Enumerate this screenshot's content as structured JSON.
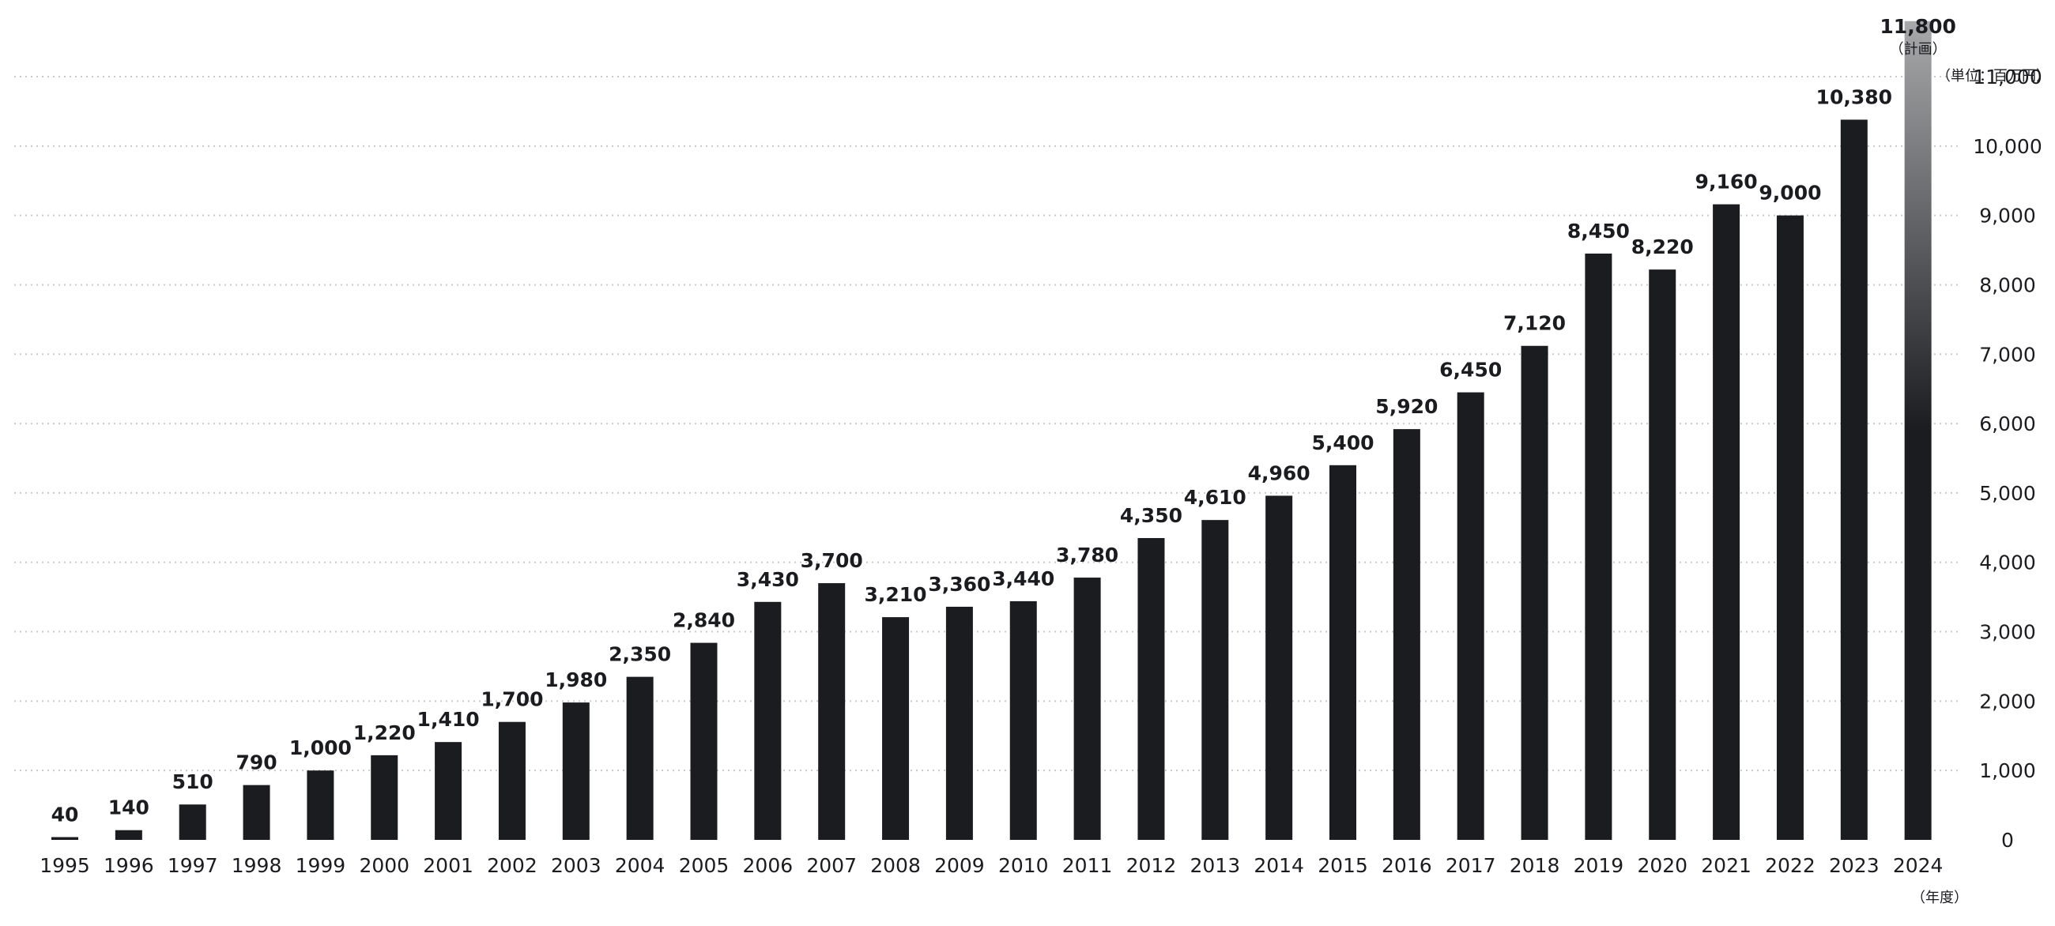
{
  "chart_data": {
    "type": "bar",
    "categories": [
      "1995",
      "1996",
      "1997",
      "1998",
      "1999",
      "2000",
      "2001",
      "2002",
      "2003",
      "2004",
      "2005",
      "2006",
      "2007",
      "2008",
      "2009",
      "2010",
      "2011",
      "2012",
      "2013",
      "2014",
      "2015",
      "2016",
      "2017",
      "2018",
      "2019",
      "2020",
      "2021",
      "2022",
      "2023",
      "2024"
    ],
    "values": [
      40,
      140,
      510,
      790,
      1000,
      1220,
      1410,
      1700,
      1980,
      2350,
      2840,
      3430,
      3700,
      3210,
      3360,
      3440,
      3780,
      4350,
      4610,
      4960,
      5400,
      5920,
      6450,
      7120,
      8450,
      8220,
      9160,
      9000,
      10380,
      11800
    ],
    "value_labels": [
      "40",
      "140",
      "510",
      "790",
      "1,000",
      "1,220",
      "1,410",
      "1,700",
      "1,980",
      "2,350",
      "2,840",
      "3,430",
      "3,700",
      "3,210",
      "3,360",
      "3,440",
      "3,780",
      "4,350",
      "4,610",
      "4,960",
      "5,400",
      "5,920",
      "6,450",
      "7,120",
      "8,450",
      "8,220",
      "9,160",
      "9,000",
      "10,380",
      "11,800"
    ],
    "y_ticks": [
      {
        "value": 0,
        "label": "0"
      },
      {
        "value": 1000,
        "label": "1,000"
      },
      {
        "value": 2000,
        "label": "2,000"
      },
      {
        "value": 3000,
        "label": "3,000"
      },
      {
        "value": 4000,
        "label": "4,000"
      },
      {
        "value": 5000,
        "label": "5,000"
      },
      {
        "value": 6000,
        "label": "6,000"
      },
      {
        "value": 7000,
        "label": "7,000"
      },
      {
        "value": 8000,
        "label": "8,000"
      },
      {
        "value": 9000,
        "label": "9,000"
      },
      {
        "value": 10000,
        "label": "10,000"
      },
      {
        "value": 11000,
        "label": "11,000"
      }
    ],
    "ylim": [
      0,
      11800
    ],
    "y_axis_position": "right",
    "grid": true,
    "grid_style": "dotted",
    "unit_label": "（単位：百万円）",
    "x_unit_label": "（年度）",
    "plan_category": "2024",
    "plan_note": "（計画）",
    "colors": {
      "bar": "#1b1c20",
      "plan_bar_top": "#a8a9ab",
      "plan_bar_bottom": "#1b1c20",
      "grid": "#c9c9c9",
      "text": "#1b1c20"
    }
  }
}
